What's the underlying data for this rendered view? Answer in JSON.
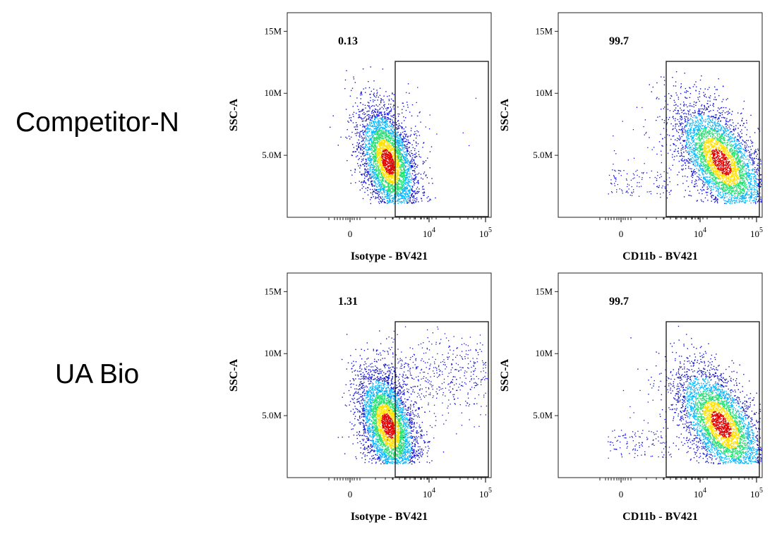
{
  "rows": [
    {
      "label": "Competitor-N"
    },
    {
      "label": "UA Bio"
    }
  ],
  "colors": {
    "density_low": "#1010d0",
    "density_mid_low": "#00b4ff",
    "density_mid": "#20e070",
    "density_mid_high": "#ffe000",
    "density_high": "#e00000"
  },
  "chart_data": [
    {
      "type": "scatter",
      "row": "Competitor-N",
      "xlabel": "Isotype - BV421",
      "ylabel": "SSC-A",
      "x_ticks": [
        {
          "value": "0",
          "base": "",
          "exp": ""
        },
        {
          "value": "",
          "base": "10",
          "exp": "4"
        },
        {
          "value": "",
          "base": "10",
          "exp": "5"
        }
      ],
      "y_ticks": [
        "15M",
        "10M",
        "5.0M"
      ],
      "ylim": [
        0,
        16500000
      ],
      "x_scale": "biexponential",
      "gate": {
        "label": "0.13",
        "percent": 0.13,
        "x_range": [
          2000,
          100000
        ],
        "y_range": [
          0,
          12800000
        ]
      },
      "population": {
        "center_x": 800,
        "center_y": 4500000,
        "spread": "narrow",
        "orientation": "upright",
        "events_in_gate": "sparse"
      }
    },
    {
      "type": "scatter",
      "row": "Competitor-N",
      "xlabel": "CD11b - BV421",
      "ylabel": "SSC-A",
      "x_ticks": [
        {
          "value": "0",
          "base": "",
          "exp": ""
        },
        {
          "value": "",
          "base": "10",
          "exp": "4"
        },
        {
          "value": "",
          "base": "10",
          "exp": "5"
        }
      ],
      "y_ticks": [
        "15M",
        "10M",
        "5.0M"
      ],
      "ylim": [
        0,
        16500000
      ],
      "x_scale": "biexponential",
      "gate": {
        "label": "99.7",
        "percent": 99.7,
        "x_range": [
          2000,
          100000
        ],
        "y_range": [
          0,
          12800000
        ]
      },
      "population": {
        "center_x": 20000,
        "center_y": 4500000,
        "spread": "wide",
        "orientation": "tilted",
        "events_in_gate": "dense"
      }
    },
    {
      "type": "scatter",
      "row": "UA Bio",
      "xlabel": "Isotype - BV421",
      "ylabel": "SSC-A",
      "x_ticks": [
        {
          "value": "0",
          "base": "",
          "exp": ""
        },
        {
          "value": "",
          "base": "10",
          "exp": "4"
        },
        {
          "value": "",
          "base": "10",
          "exp": "5"
        }
      ],
      "y_ticks": [
        "15M",
        "10M",
        "5.0M"
      ],
      "ylim": [
        0,
        16500000
      ],
      "x_scale": "biexponential",
      "gate": {
        "label": "1.31",
        "percent": 1.31,
        "x_range": [
          2000,
          100000
        ],
        "y_range": [
          0,
          12800000
        ]
      },
      "population": {
        "center_x": 800,
        "center_y": 4200000,
        "spread": "narrow",
        "orientation": "upright",
        "events_in_gate": "scattered"
      }
    },
    {
      "type": "scatter",
      "row": "UA Bio",
      "xlabel": "CD11b - BV421",
      "ylabel": "SSC-A",
      "x_ticks": [
        {
          "value": "0",
          "base": "",
          "exp": ""
        },
        {
          "value": "",
          "base": "10",
          "exp": "4"
        },
        {
          "value": "",
          "base": "10",
          "exp": "5"
        }
      ],
      "y_ticks": [
        "15M",
        "10M",
        "5.0M"
      ],
      "ylim": [
        0,
        16500000
      ],
      "x_scale": "biexponential",
      "gate": {
        "label": "99.7",
        "percent": 99.7,
        "x_range": [
          2000,
          100000
        ],
        "y_range": [
          0,
          12800000
        ]
      },
      "population": {
        "center_x": 20000,
        "center_y": 4300000,
        "spread": "wide",
        "orientation": "tilted",
        "events_in_gate": "dense"
      }
    }
  ]
}
